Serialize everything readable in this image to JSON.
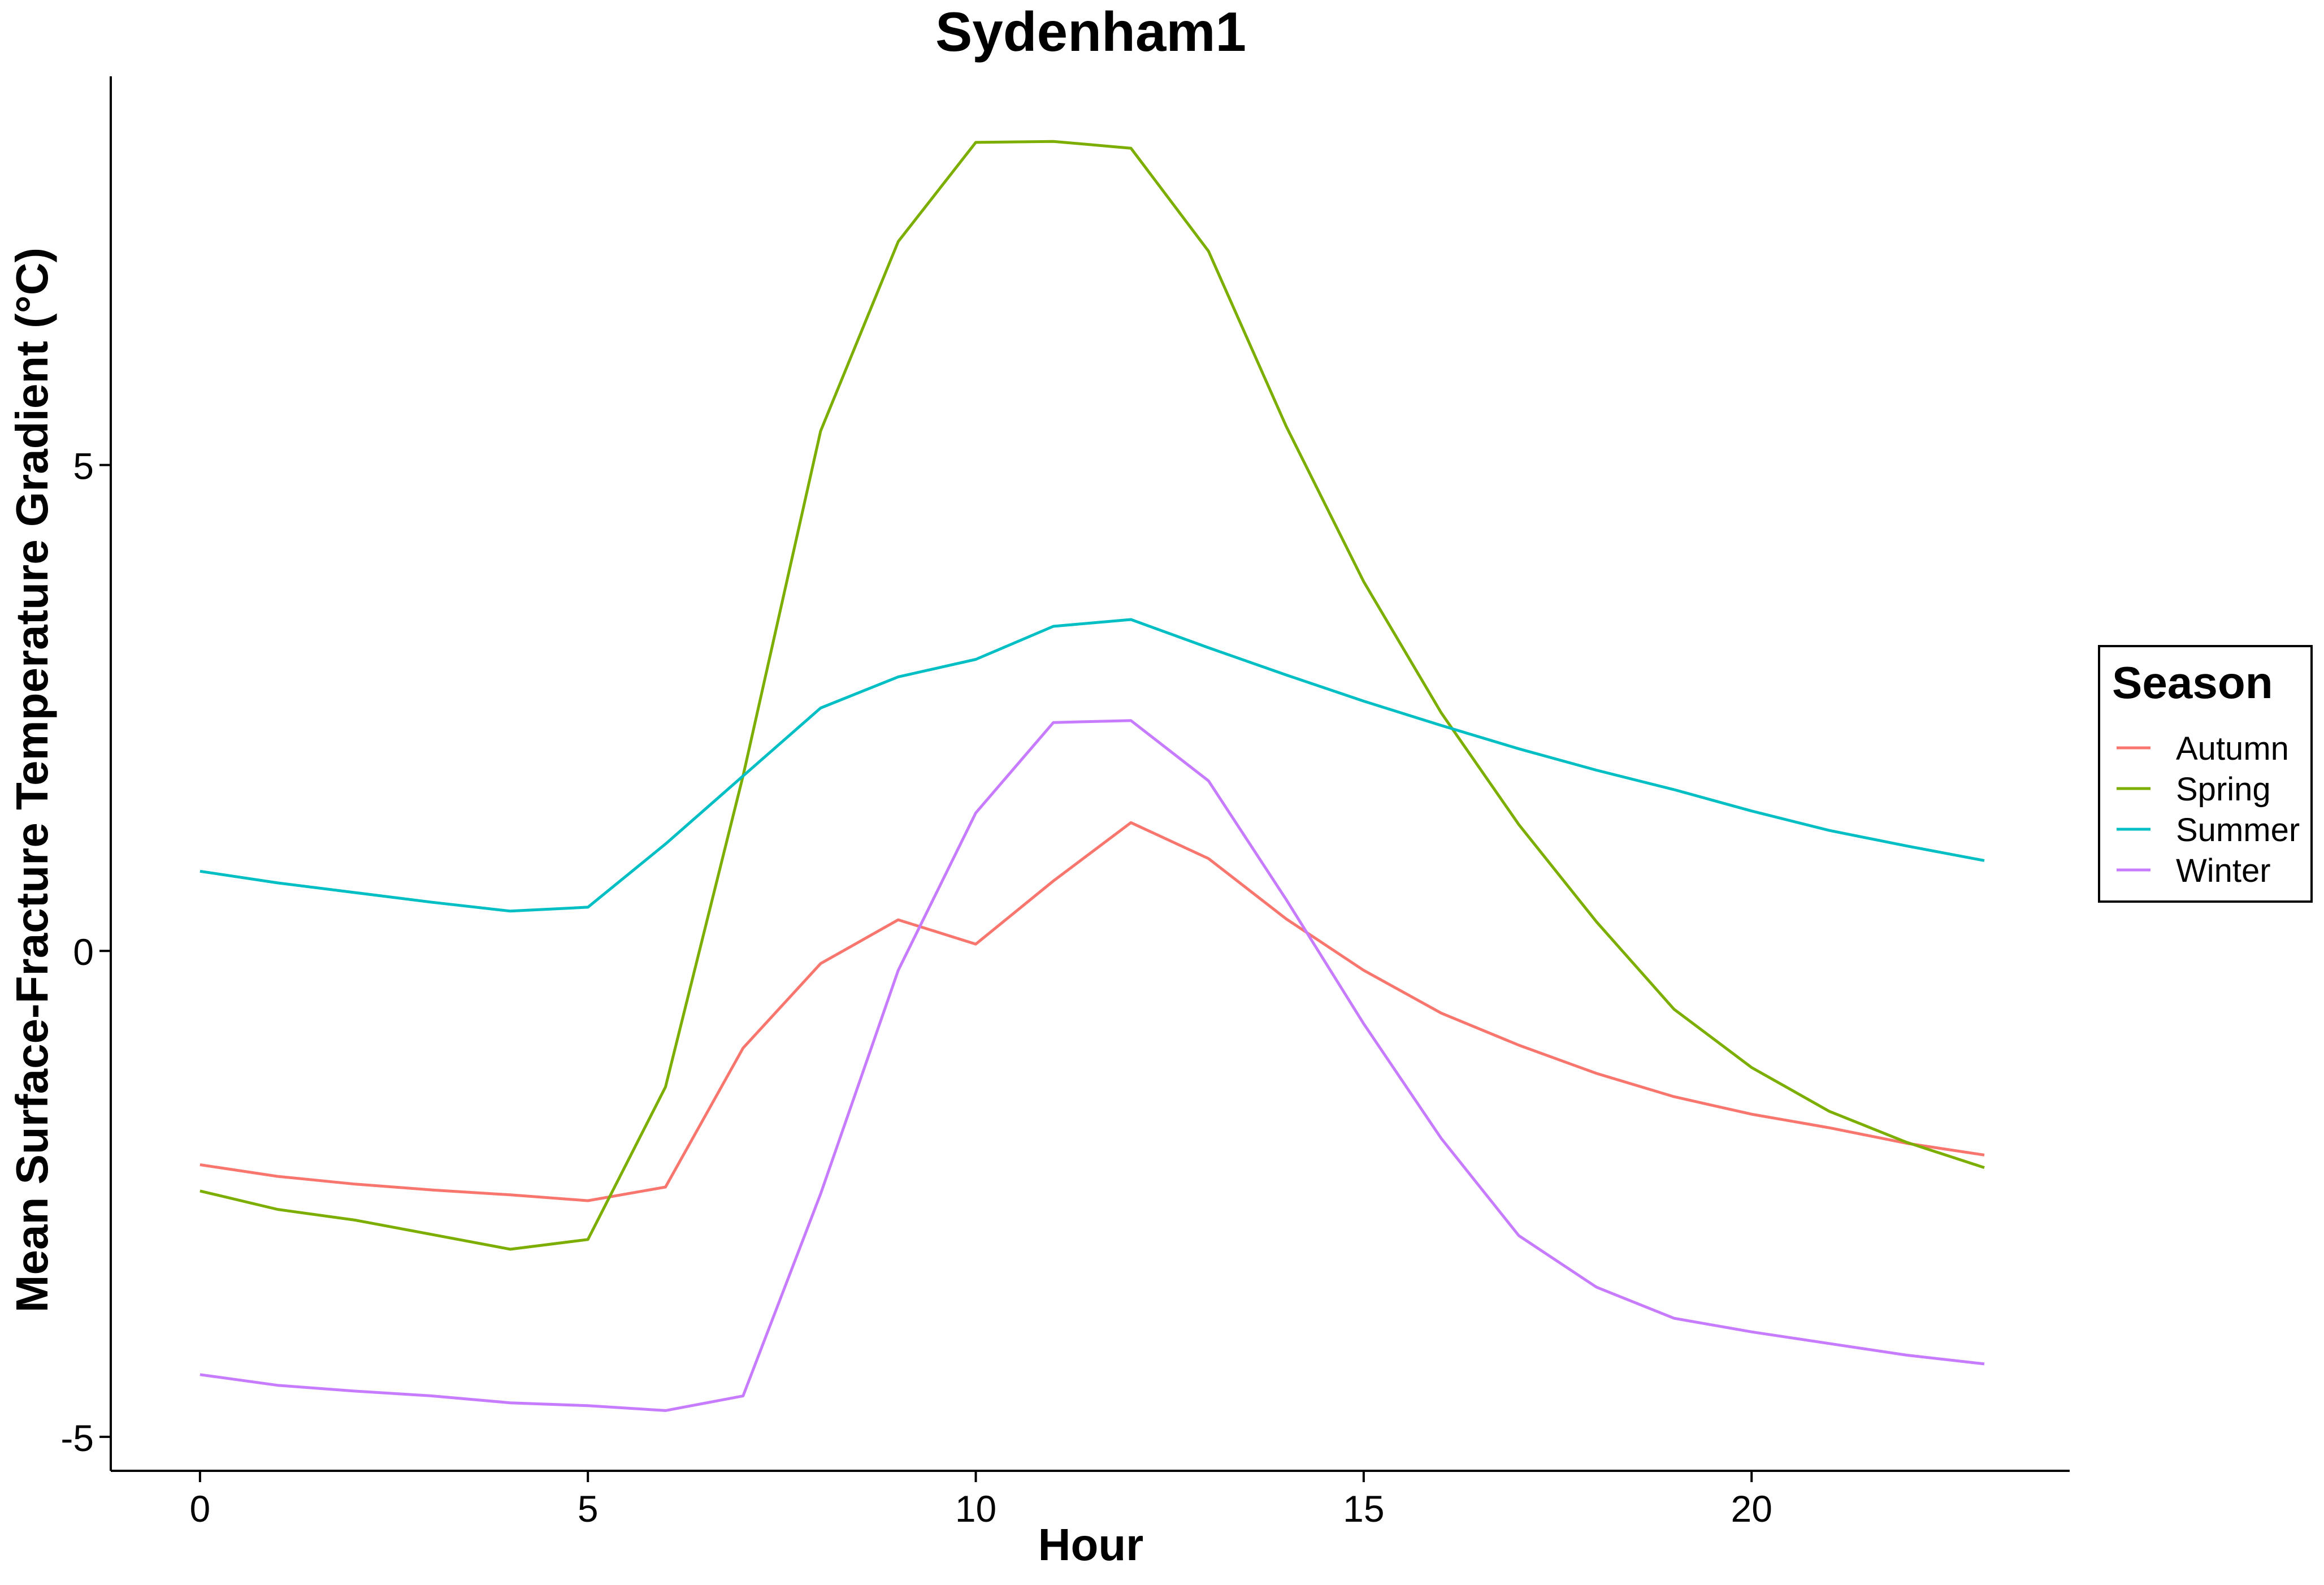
{
  "chart_data": {
    "type": "line",
    "title": "Sydenham1",
    "xlabel": "Hour",
    "ylabel": "Mean Surface-Fracture Temperature Gradient (°C)",
    "xlim": [
      -1.15,
      24.1
    ],
    "ylim": [
      -5.35,
      9.0
    ],
    "x_ticks": [
      0,
      5,
      10,
      15,
      20
    ],
    "y_ticks": [
      -5,
      0,
      5
    ],
    "grid": false,
    "legend": {
      "title": "Season",
      "position": "right"
    },
    "x": [
      0,
      1,
      2,
      3,
      4,
      5,
      6,
      7,
      8,
      9,
      10,
      11,
      12,
      13,
      14,
      15,
      16,
      17,
      18,
      19,
      20,
      21,
      22,
      23
    ],
    "series": [
      {
        "name": "Autumn",
        "color": "#F8766D",
        "values": [
          -2.2,
          -2.32,
          -2.4,
          -2.46,
          -2.51,
          -2.57,
          -2.43,
          -1.0,
          -0.13,
          0.32,
          0.07,
          0.72,
          1.32,
          0.95,
          0.33,
          -0.2,
          -0.64,
          -0.97,
          -1.26,
          -1.5,
          -1.68,
          -1.82,
          -1.98,
          -2.1
        ]
      },
      {
        "name": "Spring",
        "color": "#7CAE00",
        "values": [
          -2.47,
          -2.66,
          -2.77,
          -2.92,
          -3.07,
          -2.97,
          -1.4,
          1.8,
          5.35,
          7.3,
          8.32,
          8.33,
          8.26,
          7.2,
          5.4,
          3.8,
          2.45,
          1.3,
          0.3,
          -0.6,
          -1.2,
          -1.65,
          -1.97,
          -2.23
        ]
      },
      {
        "name": "Summer",
        "color": "#00BFC4",
        "values": [
          0.82,
          0.7,
          0.6,
          0.5,
          0.41,
          0.45,
          1.1,
          1.8,
          2.5,
          2.82,
          3.0,
          3.34,
          3.41,
          3.12,
          2.84,
          2.57,
          2.32,
          2.08,
          1.86,
          1.66,
          1.44,
          1.24,
          1.08,
          0.93
        ]
      },
      {
        "name": "Winter",
        "color": "#C77CFF",
        "values": [
          -4.36,
          -4.47,
          -4.53,
          -4.58,
          -4.65,
          -4.68,
          -4.73,
          -4.58,
          -2.5,
          -0.2,
          1.42,
          2.35,
          2.37,
          1.75,
          0.53,
          -0.75,
          -1.93,
          -2.93,
          -3.46,
          -3.78,
          -3.92,
          -4.04,
          -4.16,
          -4.25
        ]
      }
    ]
  }
}
